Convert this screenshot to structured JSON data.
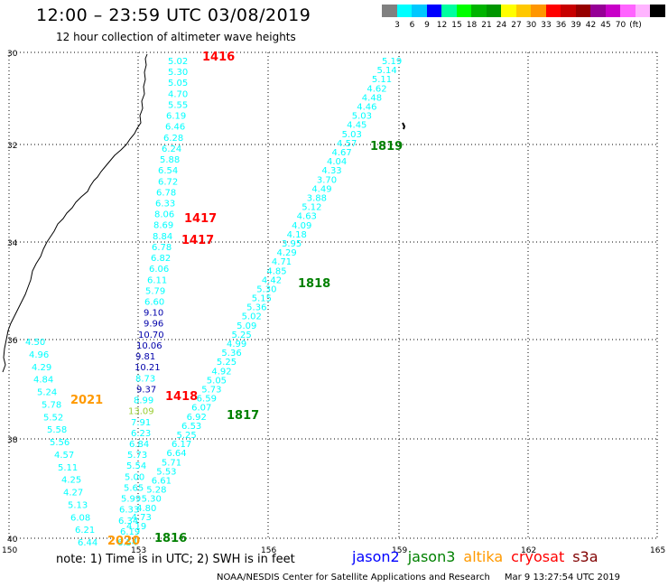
{
  "header": {
    "title": "12:00 – 23:59 UTC 03/08/2019",
    "subtitle": "12 hour collection of altimeter wave heights"
  },
  "legend": {
    "colors": [
      "#808080",
      "#00ffff",
      "#00c8ff",
      "#0000ff",
      "#00ffa0",
      "#00ff00",
      "#00b400",
      "#009600",
      "#ffff00",
      "#ffc800",
      "#ff9600",
      "#ff0000",
      "#c80000",
      "#960000",
      "#960096",
      "#c800c8",
      "#ff64ff",
      "#ffb4ff",
      "#000000"
    ],
    "labels": [
      "3",
      "6",
      "9",
      "12",
      "15",
      "18",
      "21",
      "24",
      "27",
      "30",
      "33",
      "36",
      "39",
      "42",
      "45",
      "70",
      "(ft)"
    ]
  },
  "axes": {
    "lat_labels": [
      "30",
      "32",
      "34",
      "36",
      "38",
      "40"
    ],
    "lon_labels": [
      "150",
      "153",
      "156",
      "159",
      "162",
      "165"
    ]
  },
  "tracks": [
    {
      "pass": "1416",
      "color": "#00ffff",
      "values": [
        "5.02",
        "5.30",
        "5.05",
        "4.70",
        "5.55",
        "6.19",
        "6.46",
        "6.28",
        "6.24",
        "5.88",
        "6.54",
        "6.72",
        "6.78",
        "6.33",
        "8.06",
        "8.69",
        "8.84",
        "6.78",
        "6.82",
        "6.06",
        "6.11",
        "5.79",
        "6.60",
        "9.10",
        "9.96",
        "10.70",
        "10.06",
        "9.81",
        "10.21",
        "8.73",
        "9.37",
        "8.99",
        "13.09",
        "7.91",
        "6.23",
        "6.84",
        "5.73",
        "5.54",
        "5.00",
        "5.65",
        "5.99",
        "6.33",
        "6.34",
        "6.19",
        "6.54"
      ]
    },
    {
      "pass": "1818",
      "color": "#00ffff",
      "values": [
        "5.19",
        "5.14",
        "5.11",
        "4.62",
        "4.48",
        "4.46",
        "5.03",
        "4.45",
        "5.03",
        "4.57",
        "4.67",
        "4.04",
        "4.33",
        "3.70",
        "4.49",
        "3.88",
        "5.12",
        "4.63",
        "4.09",
        "4.18",
        "3.95",
        "4.29",
        "4.71",
        "4.85",
        "4.42",
        "5.30",
        "5.15",
        "5.36",
        "5.02",
        "5.09",
        "5.25",
        "4.99",
        "5.36",
        "5.25",
        "4.92",
        "5.05",
        "5.73",
        "6.59",
        "6.07",
        "6.92",
        "6.53",
        "5.25",
        "6.17",
        "6.64",
        "5.71",
        "5.53",
        "6.61",
        "5.28",
        "5.30",
        "4.80",
        "4.73",
        "4.19"
      ]
    },
    {
      "pass": "2021",
      "color": "#00ffff",
      "values": [
        "4.50",
        "4.96",
        "4.29",
        "4.84",
        "5.24",
        "5.78",
        "5.52",
        "5.58",
        "5.56",
        "4.57",
        "5.11",
        "4.25",
        "4.27",
        "5.13",
        "6.08",
        "6.21",
        "6.44"
      ]
    }
  ],
  "pass_labels": [
    {
      "text": "1416",
      "color": "#ff0000"
    },
    {
      "text": "1417",
      "color": "#ff0000"
    },
    {
      "text": "1417",
      "color": "#ff0000"
    },
    {
      "text": "1418",
      "color": "#ff0000"
    },
    {
      "text": "1819",
      "color": "#008000"
    },
    {
      "text": "1818",
      "color": "#008000"
    },
    {
      "text": "1817",
      "color": "#008000"
    },
    {
      "text": "1816",
      "color": "#008000"
    },
    {
      "text": "2021",
      "color": "#ff9900"
    },
    {
      "text": "2020",
      "color": "#ff9900"
    }
  ],
  "footer": {
    "note": "note: 1) Time is in UTC; 2) SWH is in feet",
    "satellites": [
      {
        "name": "jason2",
        "color": "#0000ff"
      },
      {
        "name": "jason3",
        "color": "#008000"
      },
      {
        "name": "altika",
        "color": "#ff9900"
      },
      {
        "name": "cryosat",
        "color": "#ff0000"
      },
      {
        "name": "s3a",
        "color": "#800000"
      }
    ],
    "credit": "NOAA/NESDIS Center for Satellite Applications and Research",
    "timestamp": "Mar  9 13:27:54 UTC 2019"
  }
}
